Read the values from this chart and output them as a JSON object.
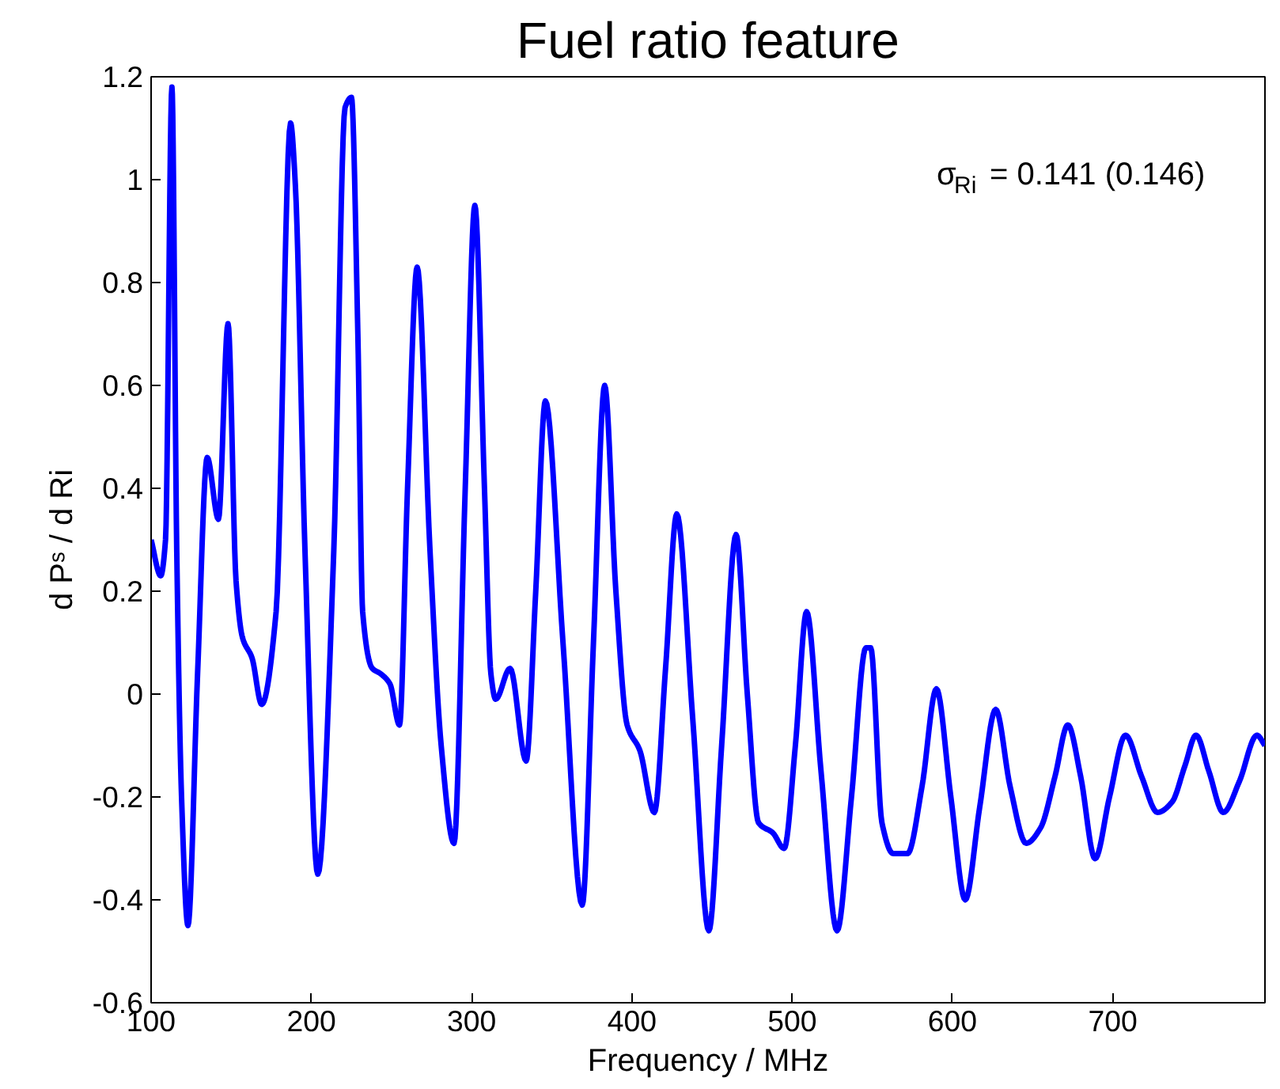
{
  "chart_data": {
    "type": "line",
    "title": "Fuel ratio feature",
    "xlabel": "Frequency / MHz",
    "ylabel": "d Pˢ / d Ri",
    "annotations": [
      "σ$_{Ri}$ = 0.141 (0.146)"
    ],
    "xlim": [
      100,
      795
    ],
    "ylim": [
      -0.6,
      1.2
    ],
    "xticks": [
      100,
      200,
      300,
      400,
      500,
      600,
      700
    ],
    "yticks": [
      -0.6,
      -0.4,
      -0.2,
      0,
      0.2,
      0.4,
      0.6,
      0.8,
      1,
      1.2
    ],
    "grid": false,
    "marker": "none",
    "line_style": "solid",
    "series": [
      {
        "color": "#0000ff",
        "x": [
          100,
          106,
          109,
          113,
          116,
          119,
          123,
          129,
          135,
          142,
          148,
          153,
          157,
          163,
          169,
          178,
          187,
          190,
          196,
          204,
          214,
          221,
          225,
          229,
          232,
          238,
          243,
          249,
          255,
          260,
          266,
          274,
          281,
          289,
          296,
          302,
          308,
          312,
          315,
          324,
          334,
          340,
          346,
          357,
          369,
          376,
          383,
          390,
          397,
          405,
          414,
          421,
          428,
          438,
          448,
          456,
          465,
          472,
          479,
          488,
          495,
          502,
          509,
          518,
          528,
          537,
          546,
          549,
          556,
          563,
          572,
          581,
          590,
          599,
          608,
          617,
          627,
          636,
          646,
          655,
          664,
          672,
          680,
          689,
          698,
          708,
          718,
          728,
          737,
          745,
          752,
          760,
          769,
          779,
          790,
          795
        ],
        "values": [
          0.3,
          0.23,
          0.3,
          1.18,
          0.28,
          -0.2,
          -0.45,
          0.04,
          0.46,
          0.34,
          0.72,
          0.22,
          0.11,
          0.07,
          -0.02,
          0.16,
          1.11,
          0.99,
          0.28,
          -0.35,
          0.28,
          1.14,
          1.16,
          0.7,
          0.16,
          0.05,
          0.04,
          0.02,
          -0.06,
          0.4,
          0.83,
          0.28,
          -0.1,
          -0.29,
          0.4,
          0.95,
          0.4,
          0.04,
          -0.01,
          0.05,
          -0.13,
          0.2,
          0.57,
          0.1,
          -0.41,
          0.1,
          0.6,
          0.2,
          -0.06,
          -0.11,
          -0.23,
          0.05,
          0.35,
          -0.05,
          -0.46,
          -0.1,
          0.31,
          0.0,
          -0.25,
          -0.27,
          -0.3,
          -0.1,
          0.16,
          -0.15,
          -0.46,
          -0.2,
          0.09,
          0.09,
          -0.25,
          -0.31,
          -0.31,
          -0.18,
          0.01,
          -0.2,
          -0.4,
          -0.22,
          -0.03,
          -0.18,
          -0.29,
          -0.26,
          -0.16,
          -0.06,
          -0.16,
          -0.32,
          -0.2,
          -0.08,
          -0.16,
          -0.23,
          -0.21,
          -0.14,
          -0.08,
          -0.15,
          -0.23,
          -0.17,
          -0.08,
          -0.1
        ]
      }
    ]
  }
}
